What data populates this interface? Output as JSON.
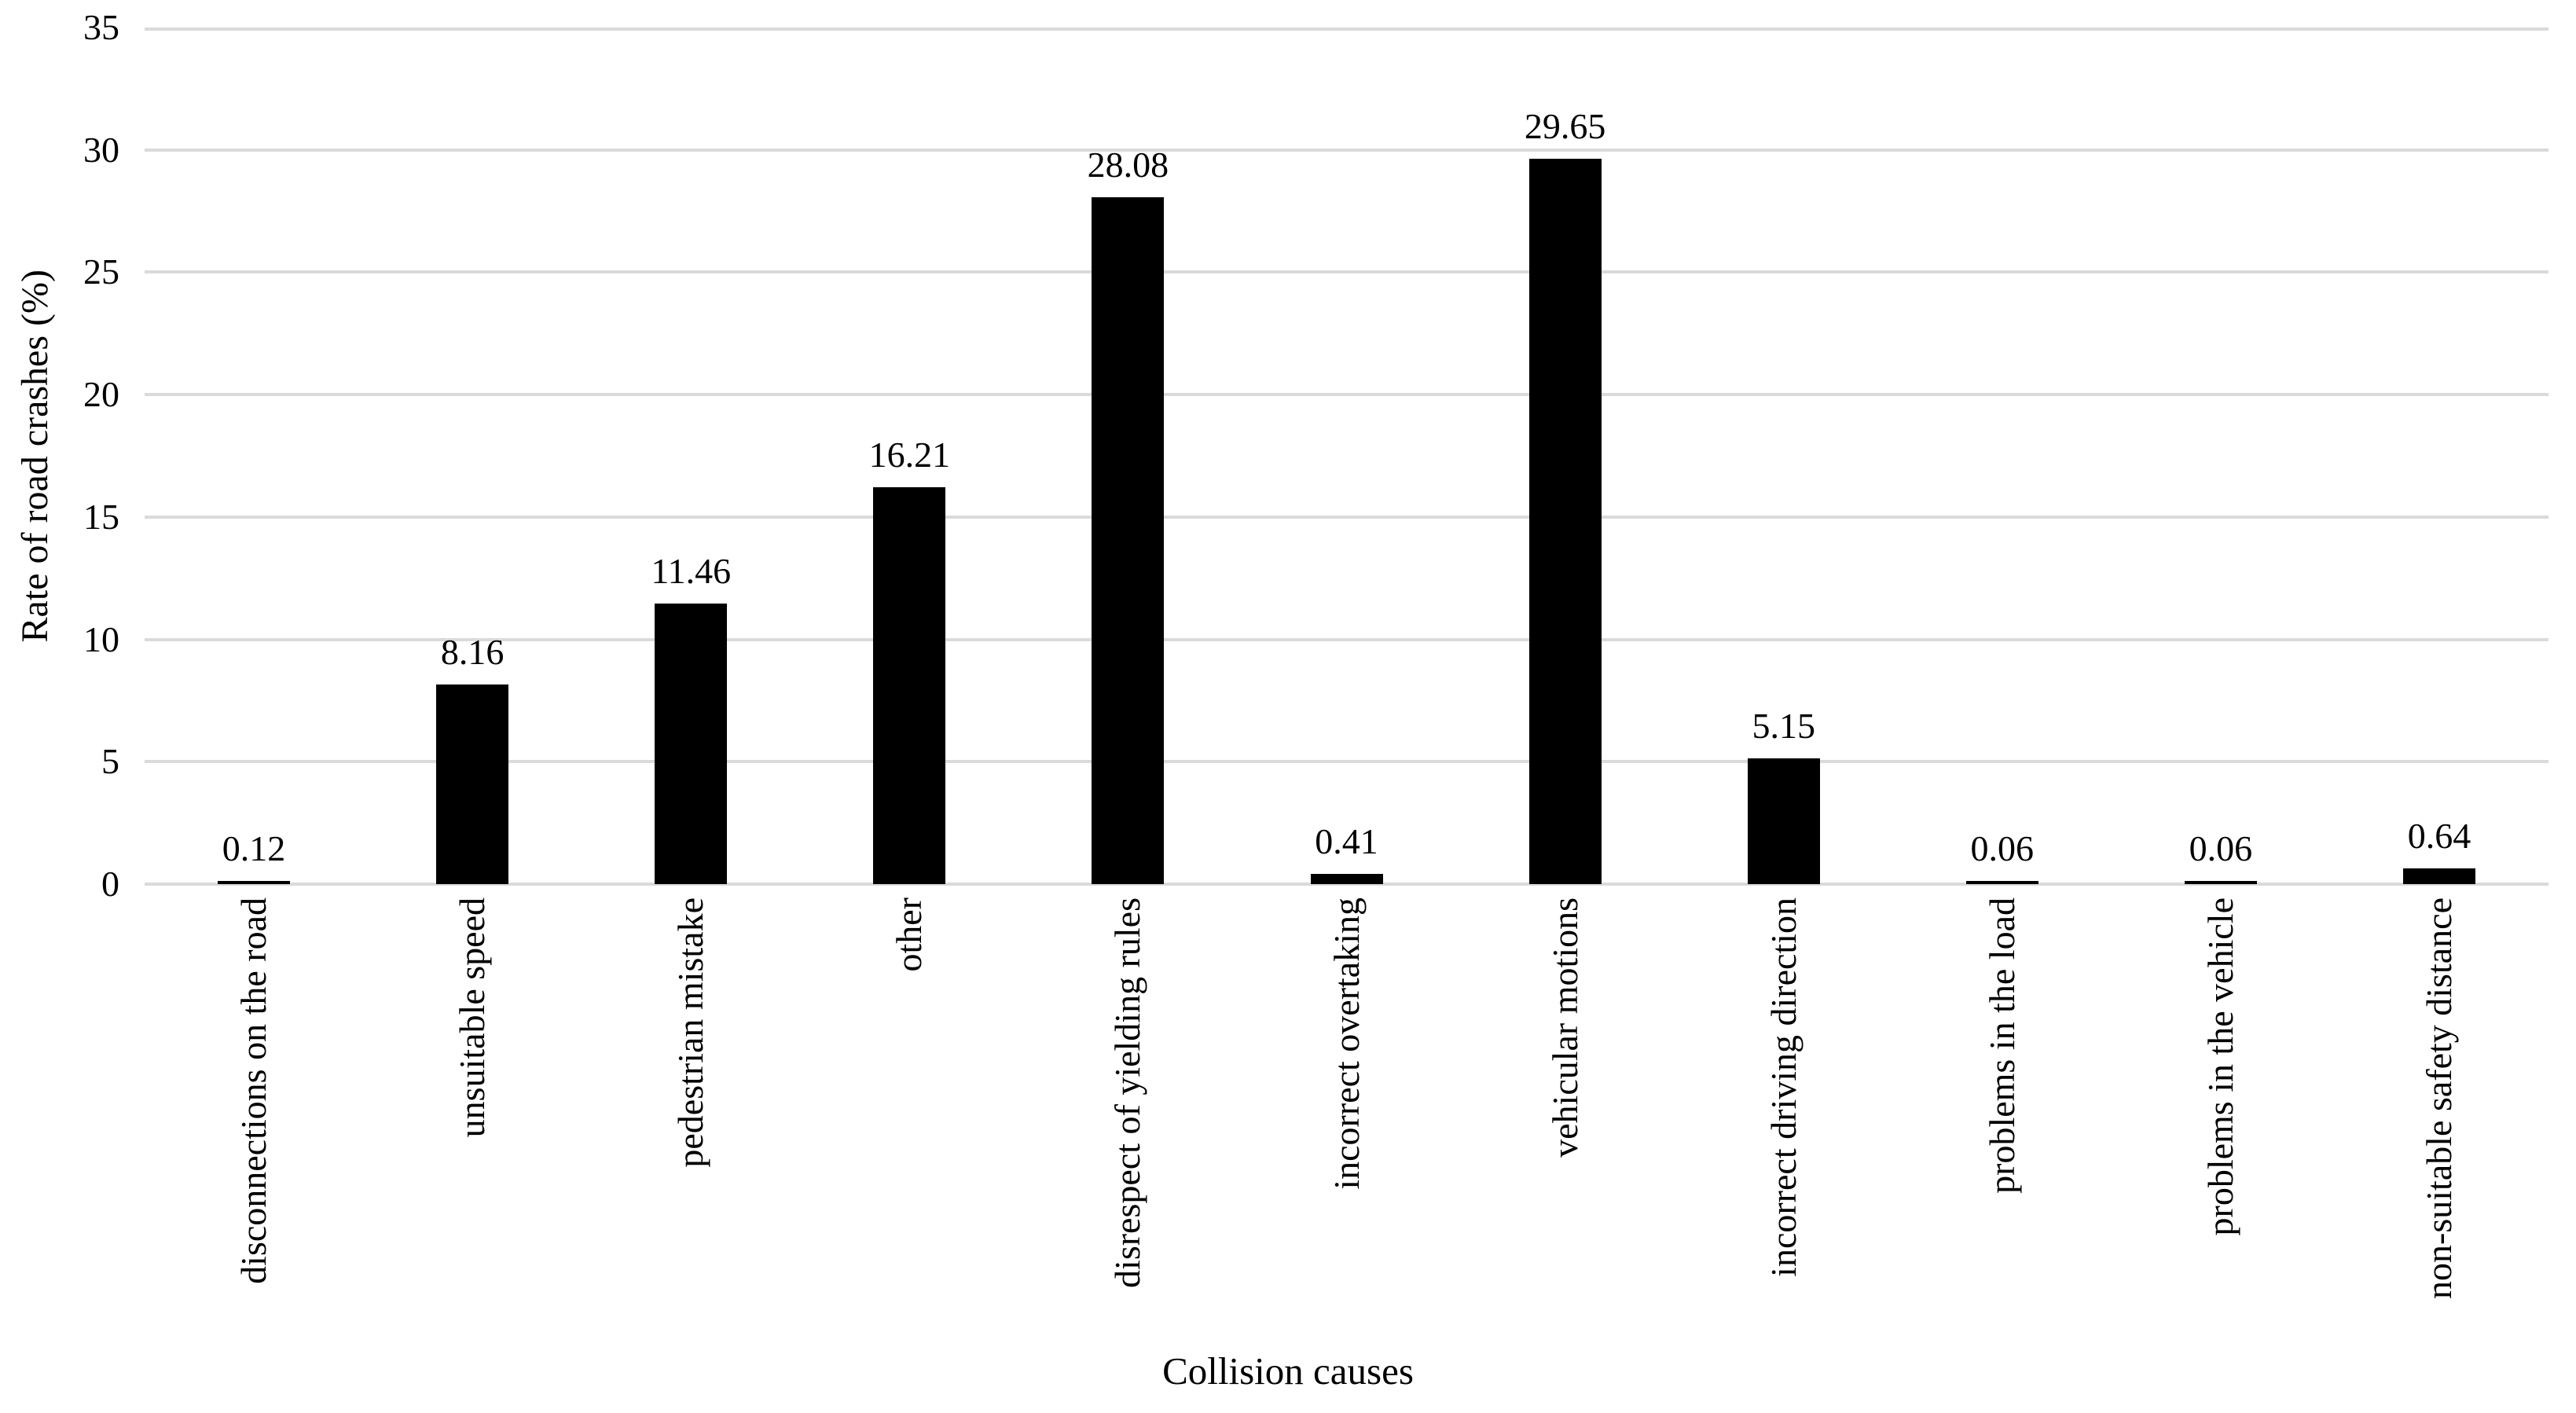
{
  "chart_data": {
    "type": "bar",
    "title": "",
    "categories": [
      "disconnections on the road",
      "unsuitable speed",
      "pedestrian mistake",
      "other",
      "disrespect of yielding rules",
      "incorrect overtaking",
      "vehicular motions",
      "incorrect driving direction",
      "problems in the load",
      "problems in the vehicle",
      "non-suitable safety distance"
    ],
    "values": [
      0.12,
      8.16,
      11.46,
      16.21,
      28.08,
      0.41,
      29.65,
      5.15,
      0.06,
      0.06,
      0.64
    ],
    "value_labels": [
      "0.12",
      "8.16",
      "11.46",
      "16.21",
      "28.08",
      "0.41",
      "29.65",
      "5.15",
      "0.06",
      "0.06",
      "0.64"
    ],
    "xlabel": "Collision causes",
    "ylabel": "Rate of road crashes (%)",
    "ylim": [
      0,
      35
    ],
    "yticks": [
      0,
      5,
      10,
      15,
      20,
      25,
      30,
      35
    ],
    "ytick_labels": [
      "0",
      "5",
      "10",
      "15",
      "20",
      "25",
      "30",
      "35"
    ],
    "grid": true,
    "legend": "none",
    "bar_color": "#000000",
    "gridline_color": "#dadada",
    "text_color": "#000000",
    "background_color": "#ffffff"
  }
}
